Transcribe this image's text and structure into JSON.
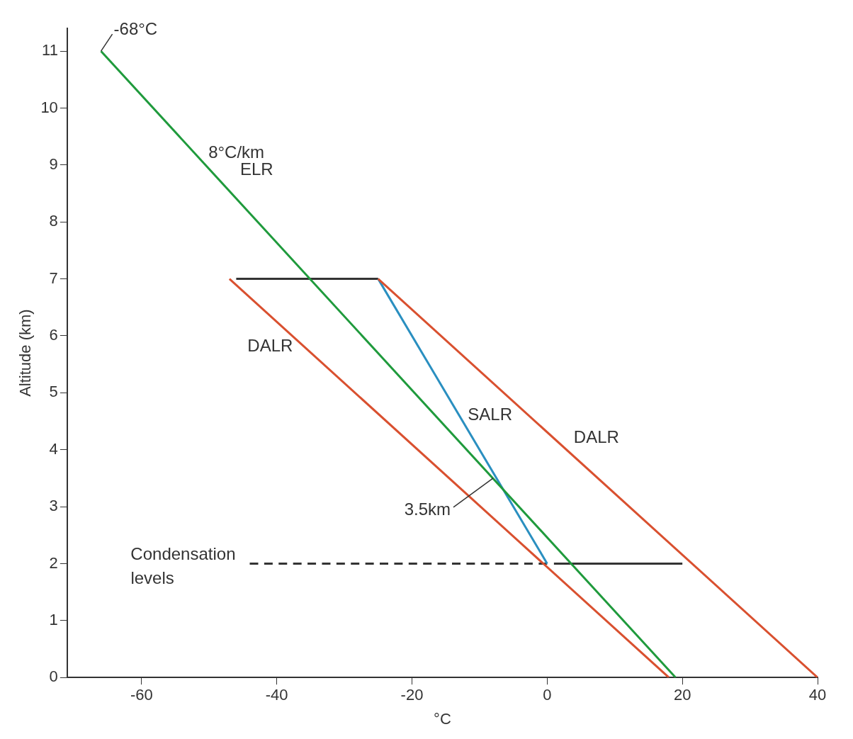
{
  "chart_data": {
    "type": "line",
    "xlabel": "°C",
    "ylabel": "Altitude (km)",
    "xlim": [
      -71,
      40
    ],
    "xticks": [
      -60,
      -40,
      -20,
      0,
      20,
      40
    ],
    "ylim": [
      0,
      11.4
    ],
    "yticks": [
      0,
      1,
      2,
      3,
      4,
      5,
      6,
      7,
      8,
      9,
      10,
      11
    ],
    "grid": false,
    "legend": false,
    "marker": "none",
    "series": [
      {
        "name": "ELR",
        "x": [
          19,
          -66
        ],
        "values": [
          0,
          11
        ],
        "color": "#1f9a3c"
      },
      {
        "name": "DALR",
        "x": [
          18,
          -47
        ],
        "values": [
          0,
          7
        ],
        "color": "#d9502f"
      },
      {
        "name": "DALR",
        "x": [
          40,
          -25
        ],
        "values": [
          0,
          7
        ],
        "color": "#d9502f"
      },
      {
        "name": "SALR",
        "x": [
          0,
          -25
        ],
        "values": [
          2,
          7
        ],
        "color": "#2a8fc0"
      },
      {
        "x": [
          -46,
          -25
        ],
        "values": [
          7,
          7
        ],
        "color": "#333333"
      },
      {
        "x": [
          1,
          20
        ],
        "values": [
          2,
          2
        ],
        "color": "#333333"
      },
      {
        "x": [
          -44,
          0
        ],
        "values": [
          2,
          2
        ],
        "color": "#333333",
        "line_style": "dashed"
      }
    ],
    "annotations": [
      {
        "text": "-68°C",
        "x": -66,
        "y": 11
      },
      {
        "text": "8°C/km",
        "x": -52,
        "y": 9.2
      },
      {
        "text": "3.5km",
        "x": -8,
        "y": 3.5
      },
      {
        "text": "Condensation levels",
        "x": -44,
        "y": 2
      }
    ]
  }
}
